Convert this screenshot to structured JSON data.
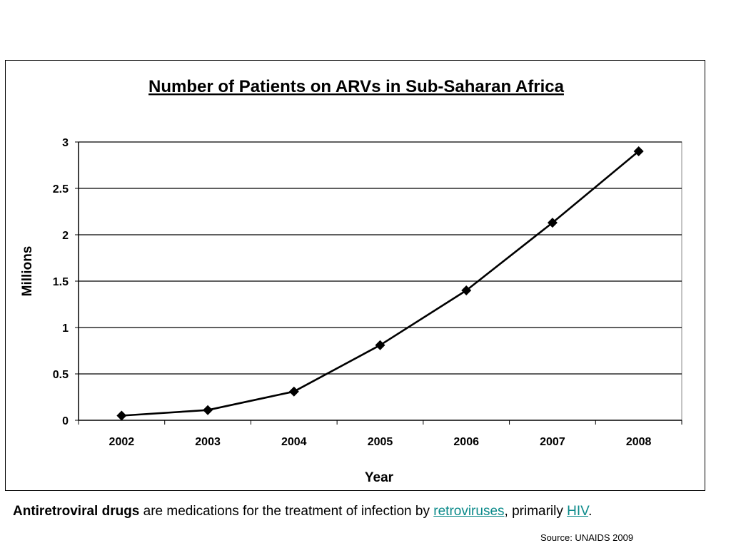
{
  "chart_data": {
    "type": "line",
    "title": "Number of Patients on ARVs in Sub-Saharan Africa",
    "xlabel": "Year",
    "ylabel": "Millions",
    "categories": [
      "2002",
      "2003",
      "2004",
      "2005",
      "2006",
      "2007",
      "2008"
    ],
    "series": [
      {
        "values": [
          0.05,
          0.11,
          0.31,
          0.81,
          1.4,
          2.13,
          2.9
        ]
      }
    ],
    "ylim": [
      0,
      3
    ],
    "yticks": [
      "0",
      "0.5",
      "1",
      "1.5",
      "2",
      "2.5",
      "3"
    ],
    "grid": true,
    "legend": "none",
    "marker": "diamond",
    "line_color": "#000000"
  },
  "caption": {
    "bold_term": "Antiretroviral drugs",
    "text_1": " are medications for the treatment of infection by ",
    "link_1": "retroviruses",
    "text_2": ", primarily ",
    "link_2": "HIV",
    "text_3": "."
  },
  "source": "Source: UNAIDS 2009",
  "colors": {
    "link": "#0b8a8a"
  }
}
